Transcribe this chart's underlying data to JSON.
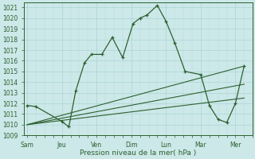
{
  "xlabel": "Pression niveau de la mer( hPa )",
  "bg_color": "#cce8e8",
  "grid_major_color": "#aad4d4",
  "grid_minor_color": "#bbdddd",
  "line_color": "#2d6030",
  "ylim": [
    1009,
    1021.5
  ],
  "yticks": [
    1009,
    1010,
    1011,
    1012,
    1013,
    1014,
    1015,
    1016,
    1017,
    1018,
    1019,
    1020,
    1021
  ],
  "x_labels": [
    "Sam",
    "Jeu",
    "Ven",
    "Dim",
    "Lun",
    "Mar",
    "Mer"
  ],
  "x_ticks": [
    0,
    2,
    4,
    6,
    8,
    10,
    12
  ],
  "xlim": [
    -0.2,
    13.0
  ],
  "main_line_x": [
    0,
    0.5,
    2,
    2.4,
    2.8,
    3.3,
    3.7,
    4.3,
    4.9,
    5.5,
    6.1,
    6.5,
    6.9,
    7.5,
    8.0,
    8.5,
    9.1,
    10.0,
    10.5,
    11.0,
    11.5,
    12.0,
    12.5
  ],
  "main_line_y": [
    1011.8,
    1011.7,
    1010.3,
    1009.8,
    1013.2,
    1015.8,
    1016.6,
    1016.6,
    1018.2,
    1016.3,
    1019.5,
    1020.0,
    1020.3,
    1021.2,
    1019.7,
    1017.7,
    1015.0,
    1014.7,
    1011.8,
    1010.5,
    1010.2,
    1012.0,
    1015.5
  ],
  "trend1_x": [
    0,
    12.5
  ],
  "trend1_y": [
    1010.0,
    1015.5
  ],
  "trend2_x": [
    0,
    12.5
  ],
  "trend2_y": [
    1010.0,
    1013.8
  ],
  "trend3_x": [
    0,
    12.5
  ],
  "trend3_y": [
    1010.0,
    1012.5
  ],
  "label_fontsize": 5.5,
  "xlabel_fontsize": 6.5
}
